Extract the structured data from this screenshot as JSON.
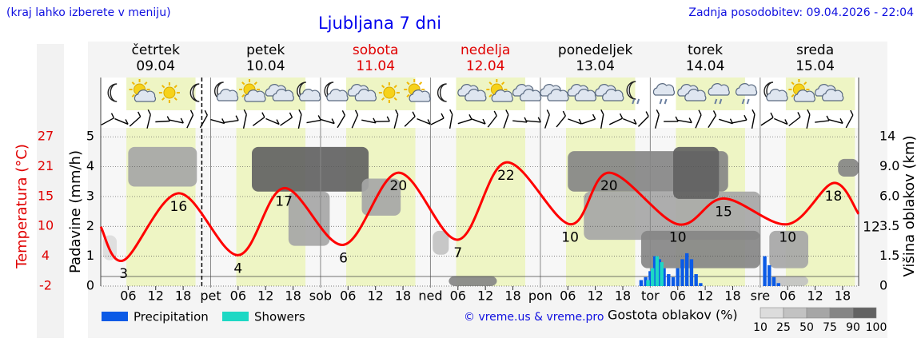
{
  "header": {
    "note": "(kraj lahko izberete v meniju)",
    "updated": "Zadnja posodobitev: 09.04.2026 - 22:04"
  },
  "chart_data": {
    "type": "meteogram",
    "title": "Ljubljana 7 dni",
    "days": [
      {
        "name": "četrtek",
        "date": "09.04",
        "color": "#000000"
      },
      {
        "name": "petek",
        "date": "10.04",
        "color": "#000000"
      },
      {
        "name": "sobota",
        "date": "11.04",
        "color": "#e00000"
      },
      {
        "name": "nedelja",
        "date": "12.04",
        "color": "#e00000"
      },
      {
        "name": "ponedeljek",
        "date": "13.04",
        "color": "#000000"
      },
      {
        "name": "torek",
        "date": "14.04",
        "color": "#000000"
      },
      {
        "name": "sreda",
        "date": "15.04",
        "color": "#000000"
      }
    ],
    "xlim": [
      0,
      165.5
    ],
    "xticks": [
      {
        "value": 6,
        "label": "06"
      },
      {
        "value": 12,
        "label": "12"
      },
      {
        "value": 18,
        "label": "18"
      },
      {
        "value": 24,
        "label": "pet"
      },
      {
        "value": 30,
        "label": "06"
      },
      {
        "value": 36,
        "label": "12"
      },
      {
        "value": 42,
        "label": "18"
      },
      {
        "value": 48,
        "label": "sob"
      },
      {
        "value": 54,
        "label": "06"
      },
      {
        "value": 60,
        "label": "12"
      },
      {
        "value": 66,
        "label": "18"
      },
      {
        "value": 72,
        "label": "ned"
      },
      {
        "value": 78,
        "label": "06"
      },
      {
        "value": 84,
        "label": "12"
      },
      {
        "value": 90,
        "label": "18"
      },
      {
        "value": 96,
        "label": "pon"
      },
      {
        "value": 102,
        "label": "06"
      },
      {
        "value": 108,
        "label": "12"
      },
      {
        "value": 114,
        "label": "18"
      },
      {
        "value": 120,
        "label": "tor"
      },
      {
        "value": 126,
        "label": "06"
      },
      {
        "value": 132,
        "label": "12"
      },
      {
        "value": 138,
        "label": "18"
      },
      {
        "value": 144,
        "label": "sre"
      },
      {
        "value": 150,
        "label": "06"
      },
      {
        "value": 156,
        "label": "12"
      },
      {
        "value": 162,
        "label": "18"
      }
    ],
    "daylight": [
      5.6,
      20.7
    ],
    "now": 22.07,
    "ylabel": "Padavine (mm/h)",
    "ylim": [
      0,
      5.3
    ],
    "yticks": [
      0,
      1,
      2,
      3,
      4,
      5
    ],
    "grid": true,
    "y3label": "Temperatura (°C)",
    "y3lim": [
      -2,
      28.7
    ],
    "y3ticks": [
      27,
      {
        "value": 21.2,
        "label": "21"
      },
      {
        "value": 15.4,
        "label": "15"
      },
      {
        "value": 9.6,
        "label": "10"
      },
      {
        "value": 3.8,
        "label": "4"
      },
      -2
    ],
    "y2label": "Višina oblakov (km)",
    "y2lim": [
      0,
      15.5
    ],
    "y2ticks": [
      14,
      {
        "value": 9,
        "label": "9.0"
      },
      {
        "value": 6,
        "label": "6.0"
      },
      3.5,
      1.5,
      0
    ],
    "temperature": {
      "color": "#ff0000",
      "x": [
        0,
        5,
        17,
        30,
        40,
        53,
        65,
        78,
        88.5,
        102.5,
        111,
        126,
        136,
        150,
        160,
        165.5
      ],
      "values": [
        9.5,
        3,
        16,
        4,
        17,
        6,
        20,
        7,
        22,
        10,
        20,
        10,
        15,
        10,
        18,
        12
      ],
      "value_labels": [
        null,
        "3",
        "16",
        "4",
        "17",
        "6",
        "20",
        "7",
        "22",
        "10",
        "20",
        "10",
        "15",
        "10",
        "18",
        "12"
      ]
    },
    "series": [
      {
        "name": "Precipitation",
        "color": "#0a5ae6",
        "x": [
          118,
          119,
          120,
          121,
          122,
          123,
          124,
          125,
          126,
          127,
          128,
          129,
          130,
          131,
          145,
          146,
          147,
          148
        ],
        "values": [
          0.2,
          0.3,
          0.5,
          1.0,
          0.9,
          0.6,
          0.4,
          0.3,
          0.6,
          0.9,
          1.1,
          0.9,
          0.4,
          0.1,
          1.0,
          0.7,
          0.3,
          0.1
        ]
      },
      {
        "name": "Showers",
        "color": "#1dd8c4",
        "x": [
          119.5,
          120.5,
          121.5,
          122.5
        ],
        "values": [
          0.2,
          0.6,
          1.0,
          0.8
        ]
      }
    ],
    "clouds": {
      "label": "Gostota oblakov (%)",
      "levels": [
        10,
        25,
        50,
        75,
        90,
        100
      ],
      "colors": [
        "#dcdcdc",
        "#c2c2c2",
        "#a6a6a6",
        "#858585",
        "#626262"
      ],
      "cells": [
        {
          "hours": [
            6,
            21
          ],
          "km": [
            7.0,
            12.3
          ],
          "density": 50
        },
        {
          "hours": [
            33,
            58.5
          ],
          "km": [
            6.5,
            12.3
          ],
          "density": 90
        },
        {
          "hours": [
            41,
            50
          ],
          "km": [
            2.2,
            6.5
          ],
          "density": 60
        },
        {
          "hours": [
            57,
            65.5
          ],
          "km": [
            4.4,
            7.8
          ],
          "density": 50
        },
        {
          "hours": [
            72.5,
            76
          ],
          "km": [
            1.6,
            3.2
          ],
          "density": 25
        },
        {
          "hours": [
            76,
            86.5
          ],
          "km": [
            0,
            0.5
          ],
          "density": 75
        },
        {
          "hours": [
            102,
            137
          ],
          "km": [
            6.5,
            11.6
          ],
          "density": 75
        },
        {
          "hours": [
            105.5,
            144
          ],
          "km": [
            2.6,
            6.5
          ],
          "density": 50
        },
        {
          "hours": [
            118,
            144
          ],
          "km": [
            0.9,
            3.2
          ],
          "density": 75
        },
        {
          "hours": [
            125,
            135
          ],
          "km": [
            5.8,
            12.3
          ],
          "density": 90
        },
        {
          "hours": [
            146,
            154.5
          ],
          "km": [
            0.9,
            3.2
          ],
          "density": 50
        },
        {
          "hours": [
            146,
            154.5
          ],
          "km": [
            0,
            0.5
          ],
          "density": 25
        },
        {
          "hours": [
            161,
            165.5
          ],
          "km": [
            8.0,
            10.3
          ],
          "density": 75
        },
        {
          "hours": [
            0.5,
            3.5
          ],
          "km": [
            1.3,
            2.9
          ],
          "density": 10
        }
      ]
    },
    "credit": "© vreme.us & vreme.pro"
  }
}
